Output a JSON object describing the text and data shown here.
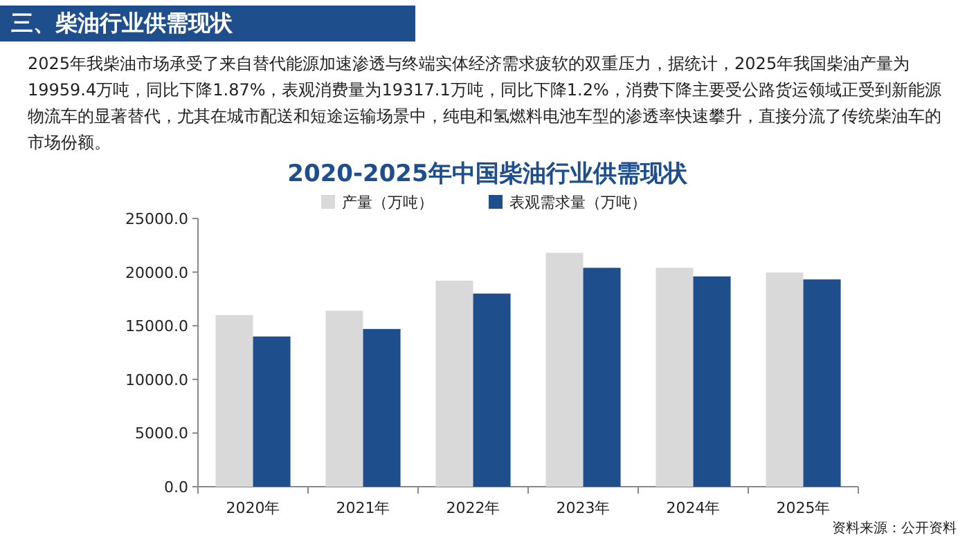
{
  "chart_data": {
    "type": "bar",
    "title": "2020-2025年中国柴油行业供需现状",
    "annotations": [
      "三、柴油行业供需现状",
      "2025年我柴油市场承受了来自替代能源加速渗透与终端实体经济需求疲软的双重压力，据统计，2025年我国柴油产量为19959.4万吨，同比下降1.87%，表观消费量为19317.1万吨，同比下降1.2%，消费下降主要受公路货运领域正受到新能源物流车的显著替代，尤其在城市配送和短途运输场景中，纯电和氢燃料电池车型的渗透率快速攀升，直接分流了传统柴油车的市场份额。",
      "资料来源：公开资料"
    ],
    "categories": [
      "2020年",
      "2021年",
      "2022年",
      "2023年",
      "2024年",
      "2025年"
    ],
    "series": [
      {
        "name": "产量（万吨）",
        "color": "#d9d9d9",
        "values": [
          16000,
          16400,
          19200,
          21800,
          20400,
          19959.4
        ]
      },
      {
        "name": "表观需求量（万吨）",
        "color": "#1f4e8c",
        "values": [
          14000,
          14700,
          18000,
          20400,
          19600,
          19317.1
        ]
      }
    ],
    "ylim": [
      0,
      25000
    ],
    "yticks": [
      {
        "value": 0,
        "label": "0.0"
      },
      {
        "value": 5000,
        "label": "5000.0"
      },
      {
        "value": 10000,
        "label": "10000.0"
      },
      {
        "value": 15000,
        "label": "15000.0"
      },
      {
        "value": 20000,
        "label": "20000.0"
      },
      {
        "value": 25000,
        "label": "25000.0"
      }
    ],
    "legend": "top",
    "grid": false
  }
}
